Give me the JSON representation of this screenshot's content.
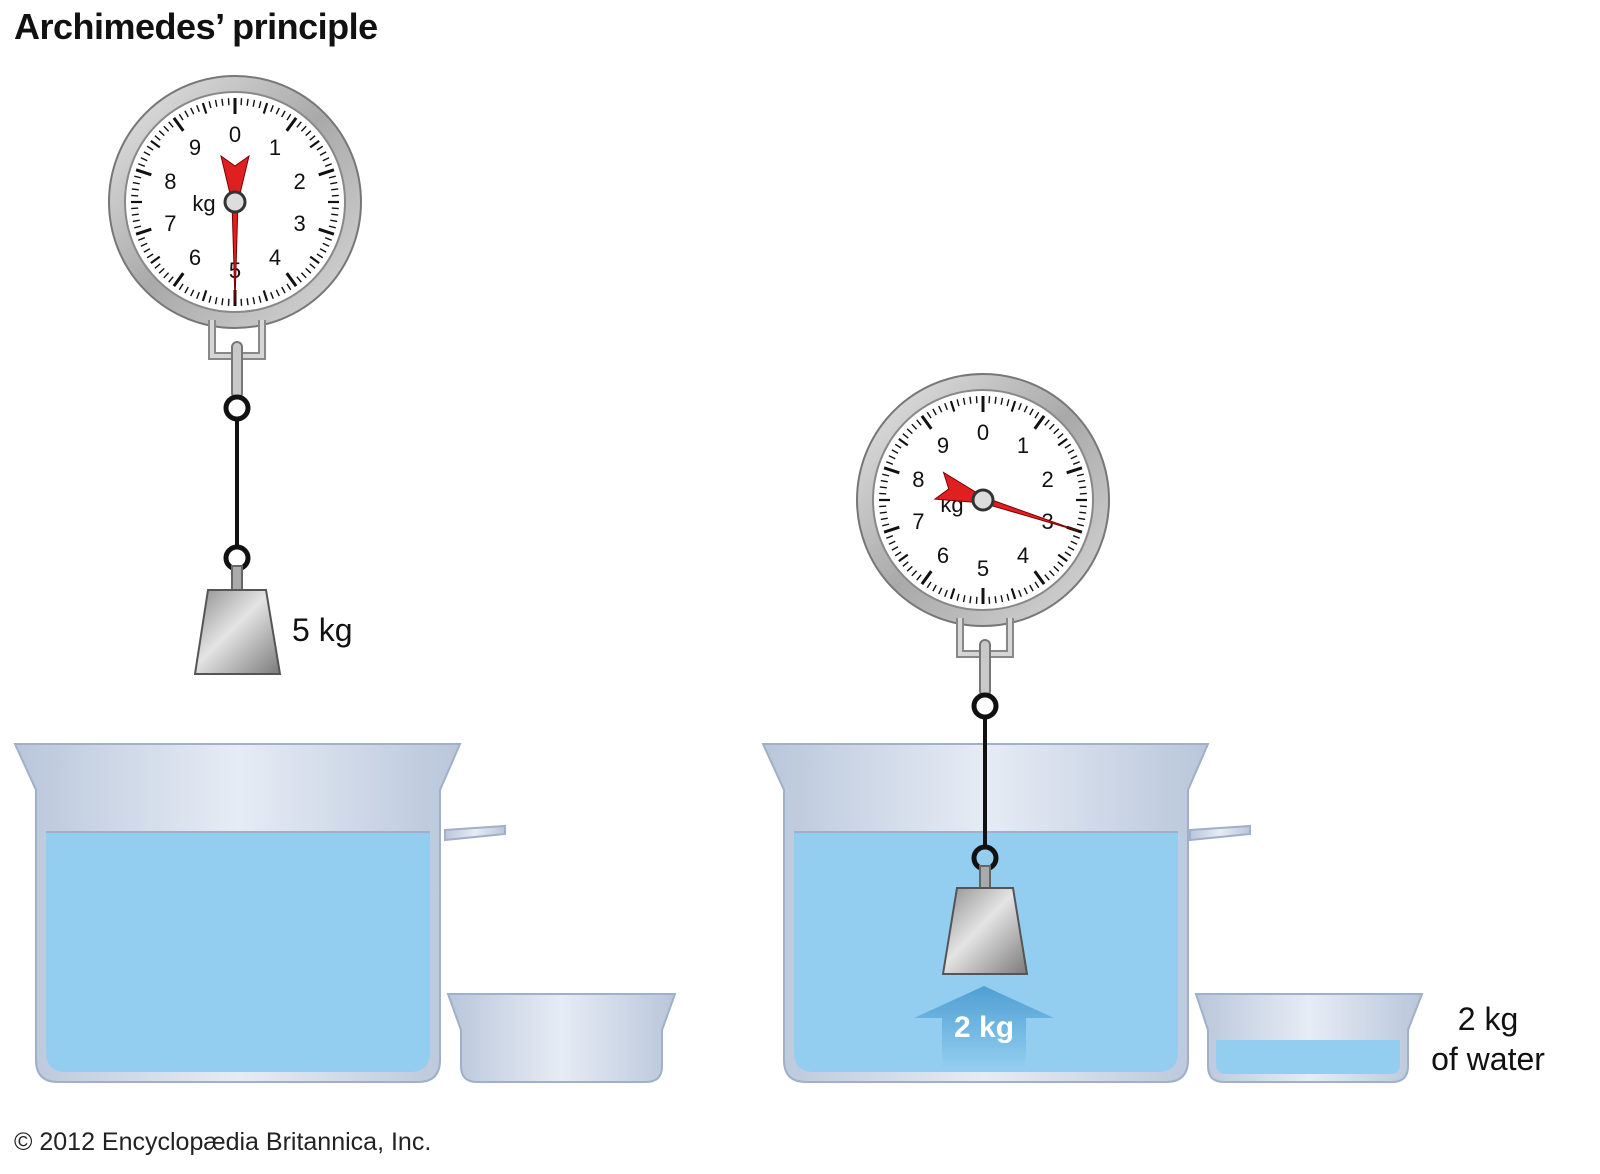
{
  "title": "Archimedes’ principle",
  "copyright": "© 2012 Encyclopædia Britannica, Inc.",
  "dial_unit": "kg",
  "dial_numbers": [
    "0",
    "1",
    "2",
    "3",
    "4",
    "5",
    "6",
    "7",
    "8",
    "9"
  ],
  "scenes": [
    {
      "name": "in-air",
      "reading_kg": 5,
      "weight_label": "5 kg"
    },
    {
      "name": "submerged",
      "reading_kg": 3,
      "buoyancy_label": "2 kg",
      "overflow_label_line1": "2 kg",
      "overflow_label_line2": "of water"
    }
  ],
  "colors": {
    "water": "#93cdf0",
    "pointer": "#e02020",
    "metal": "#b8b8b8",
    "arrow": "#5aa7d8",
    "glass": "#c8d3e3"
  }
}
